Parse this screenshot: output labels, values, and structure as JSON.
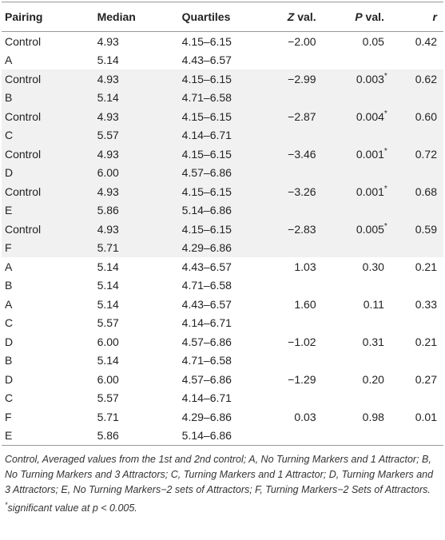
{
  "table": {
    "header": [
      {
        "text": "Pairing"
      },
      {
        "text": "Median"
      },
      {
        "text": "Quartiles"
      },
      {
        "em": "Z",
        "text": " val."
      },
      {
        "em": "P",
        "text": " val."
      },
      {
        "em": "r"
      }
    ],
    "rows": [
      {
        "pair": [
          "Control",
          "A"
        ],
        "median": [
          "4.93",
          "5.14"
        ],
        "quartiles": [
          "4.15–6.15",
          "4.43–6.57"
        ],
        "z": "−2.00",
        "p": "0.05",
        "r": "0.42"
      },
      {
        "pair": [
          "Control",
          "B"
        ],
        "median": [
          "4.93",
          "5.14"
        ],
        "quartiles": [
          "4.15–6.15",
          "4.71–6.58"
        ],
        "z": "−2.99",
        "p": "0.003",
        "p_mark": "*",
        "r": "0.62"
      },
      {
        "pair": [
          "Control",
          "C"
        ],
        "median": [
          "4.93",
          "5.57"
        ],
        "quartiles": [
          "4.15–6.15",
          "4.14–6.71"
        ],
        "z": "−2.87",
        "p": "0.004",
        "p_mark": "*",
        "r": "0.60"
      },
      {
        "pair": [
          "Control",
          "D"
        ],
        "median": [
          "4.93",
          "6.00"
        ],
        "quartiles": [
          "4.15–6.15",
          "4.57–6.86"
        ],
        "z": "−3.46",
        "p": "0.001",
        "p_mark": "*",
        "r": "0.72"
      },
      {
        "pair": [
          "Control",
          "E"
        ],
        "median": [
          "4.93",
          "5.86"
        ],
        "quartiles": [
          "4.15–6.15",
          "5.14–6.86"
        ],
        "z": "−3.26",
        "p": "0.001",
        "p_mark": "*",
        "r": "0.68"
      },
      {
        "pair": [
          "Control",
          "F"
        ],
        "median": [
          "4.93",
          "5.71"
        ],
        "quartiles": [
          "4.15–6.15",
          "4.29–6.86"
        ],
        "z": "−2.83",
        "p": "0.005",
        "p_mark": "*",
        "r": "0.59"
      },
      {
        "pair": [
          "A",
          "B"
        ],
        "median": [
          "5.14",
          "5.14"
        ],
        "quartiles": [
          "4.43–6.57",
          "4.71–6.58"
        ],
        "z": "1.03",
        "p": "0.30",
        "r": "0.21"
      },
      {
        "pair": [
          "A",
          "C"
        ],
        "median": [
          "5.14",
          "5.57"
        ],
        "quartiles": [
          "4.43–6.57",
          "4.14–6.71"
        ],
        "z": "1.60",
        "p": "0.11",
        "r": "0.33"
      },
      {
        "pair": [
          "D",
          "B"
        ],
        "median": [
          "6.00",
          "5.14"
        ],
        "quartiles": [
          "4.57–6.86",
          "4.71–6.58"
        ],
        "z": "−1.02",
        "p": "0.31",
        "r": "0.21"
      },
      {
        "pair": [
          "D",
          "C"
        ],
        "median": [
          "6.00",
          "5.57"
        ],
        "quartiles": [
          "4.57–6.86",
          "4.14–6.71"
        ],
        "z": "−1.29",
        "p": "0.20",
        "r": "0.27"
      },
      {
        "pair": [
          "F",
          "E"
        ],
        "median": [
          "5.71",
          "5.86"
        ],
        "quartiles": [
          "4.29–6.86",
          "5.14–6.86"
        ],
        "z": "0.03",
        "p": "0.98",
        "r": "0.01"
      }
    ],
    "shaded_rows": [
      1,
      2,
      3,
      4,
      5
    ],
    "footnote": {
      "text": "Control, Averaged values from the 1st and 2nd control; A, No Turning Markers and 1 Attractor; B, No Turning Markers and 3 Attractors; C, Turning Markers and 1 Attractor; D, Turning Markers and 3 Attractors; E, No Turning Markers−2 sets of Attractors; F, Turning Markers−2 Sets of Attractors. ",
      "mark": "*",
      "note": "significant value at p < 0.005."
    }
  }
}
